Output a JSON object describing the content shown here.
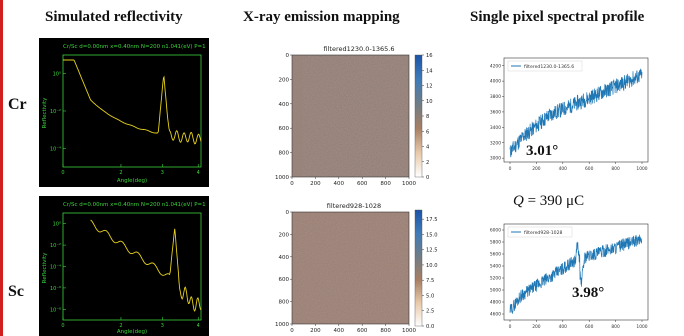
{
  "headers": {
    "col1": "Simulated reflectivity",
    "col2": "X-ray emission mapping",
    "col3": "Single pixel spectral profile"
  },
  "rows": {
    "cr": "Cr",
    "sc": "Sc"
  },
  "charge": {
    "q_symbol": "Q",
    "q_value": "= 390 μC"
  },
  "reflectivity": {
    "cr": {
      "header_text": "Cr/Sc d=0.00nm x=0.40nm N=200 n1.041(eV) P=1",
      "ylabel": "Reflectivity",
      "xlabel": "Angle(deg)",
      "yticks": [
        "10⁻⁴",
        "10⁻²",
        "10⁰"
      ],
      "xticks": [
        "0",
        "2",
        "3",
        "4"
      ]
    },
    "sc": {
      "header_text": "Cr/Sc d=0.00nm x=0.40nm N=200 n1.041(eV) P=1",
      "ylabel": "Reflectivity",
      "xlabel": "Angle(deg)",
      "yticks": [
        "10⁻⁸",
        "10⁻⁶",
        "10⁻⁴",
        "10⁻²",
        "10⁰"
      ],
      "xticks": [
        "0",
        "2",
        "3",
        "4"
      ]
    }
  },
  "maps": {
    "top": {
      "title": "filtered1230.0-1365.6",
      "yticks": [
        "0",
        "200",
        "400",
        "600",
        "800",
        "1000"
      ],
      "xticks": [
        "0",
        "200",
        "400",
        "600",
        "800",
        "1000"
      ],
      "cbar_ticks": [
        "16",
        "14",
        "12",
        "10",
        "8",
        "6",
        "4",
        "2",
        "0"
      ],
      "cbar_range": [
        0,
        16
      ]
    },
    "bottom": {
      "title": "filtered928-1028",
      "yticks": [
        "0",
        "200",
        "400",
        "600",
        "800",
        "1000"
      ],
      "xticks": [
        "0",
        "200",
        "400",
        "600",
        "800",
        "1000"
      ],
      "cbar_ticks": [
        "17.5",
        "15.0",
        "12.5",
        "10.0",
        "7.5",
        "5.0",
        "2.5",
        "0.0"
      ],
      "cbar_range": [
        0,
        19
      ]
    }
  },
  "spectra": {
    "top": {
      "legend": "filtered1230.0-1365.6",
      "yticks": [
        "3000",
        "3200",
        "3400",
        "3600",
        "3800",
        "4000",
        "4200"
      ],
      "xticks": [
        "0",
        "200",
        "400",
        "600",
        "800",
        "1000"
      ],
      "annotation": "3.01°",
      "ylim": [
        2950,
        4300
      ]
    },
    "bottom": {
      "legend": "filtered928-1028",
      "yticks": [
        "4600",
        "4800",
        "5000",
        "5200",
        "5400",
        "5600",
        "5800",
        "6000"
      ],
      "xticks": [
        "0",
        "200",
        "400",
        "600",
        "800",
        "1000"
      ],
      "annotation": "3.98°",
      "ylim": [
        4500,
        6100
      ]
    }
  },
  "colors": {
    "frame": "#d11f1f",
    "refl_bg": "#000000",
    "refl_curve": "#e6d21a",
    "refl_axes": "#3bd43b",
    "map_bg": "#8f7a72",
    "spectrum_line": "#1f77b4"
  }
}
